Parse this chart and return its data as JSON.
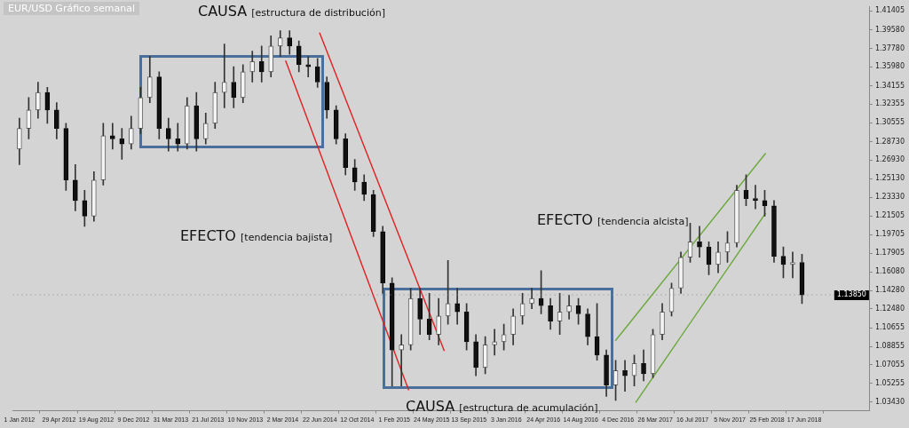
{
  "chart_data": {
    "type": "candlestick",
    "title": "EUR/USD Gráfico semanal",
    "annotations": [
      "CAUSA [estructura de distribución]",
      "EFECTO [tendencia bajista]",
      "CAUSA [estructura de acumulación]",
      "EFECTO [tendencia alcista]"
    ],
    "x": [
      "2012-01-01",
      "2012-01-29",
      "2012-02-26",
      "2012-03-25",
      "2012-04-22",
      "2012-05-20",
      "2012-06-17",
      "2012-07-15",
      "2012-08-12",
      "2012-09-09",
      "2012-10-07",
      "2012-11-04",
      "2012-12-02",
      "2012-12-30",
      "2013-01-27",
      "2013-02-24",
      "2013-03-24",
      "2013-04-21",
      "2013-05-19",
      "2013-06-16",
      "2013-07-14",
      "2013-08-11",
      "2013-09-08",
      "2013-10-06",
      "2013-11-03",
      "2013-12-01",
      "2013-12-29",
      "2014-01-26",
      "2014-02-23",
      "2014-03-23",
      "2014-04-20",
      "2014-05-18",
      "2014-06-15",
      "2014-07-13",
      "2014-08-10",
      "2014-09-07",
      "2014-10-05",
      "2014-11-02",
      "2014-11-30",
      "2014-12-28",
      "2015-01-25",
      "2015-02-22",
      "2015-03-22",
      "2015-04-19",
      "2015-05-17",
      "2015-06-14",
      "2015-07-12",
      "2015-08-09",
      "2015-09-06",
      "2015-10-04",
      "2015-11-01",
      "2015-11-29",
      "2015-12-27",
      "2016-01-24",
      "2016-02-21",
      "2016-03-20",
      "2016-04-17",
      "2016-05-15",
      "2016-06-12",
      "2016-07-10",
      "2016-08-07",
      "2016-09-04",
      "2016-10-02",
      "2016-10-30",
      "2016-11-27",
      "2016-12-25",
      "2017-01-22",
      "2017-02-19",
      "2017-03-19",
      "2017-04-16",
      "2017-05-14",
      "2017-06-11",
      "2017-07-09",
      "2017-08-06",
      "2017-09-03",
      "2017-10-01",
      "2017-10-29",
      "2017-11-26",
      "2017-12-24",
      "2018-01-21",
      "2018-02-18",
      "2018-03-18",
      "2018-04-15",
      "2018-05-13",
      "2018-06-10"
    ],
    "ohlc": [
      [
        1.28,
        1.31,
        1.265,
        1.3
      ],
      [
        1.3,
        1.33,
        1.29,
        1.318
      ],
      [
        1.318,
        1.345,
        1.31,
        1.335
      ],
      [
        1.335,
        1.34,
        1.305,
        1.318
      ],
      [
        1.318,
        1.325,
        1.29,
        1.3
      ],
      [
        1.3,
        1.305,
        1.24,
        1.25
      ],
      [
        1.25,
        1.265,
        1.22,
        1.23
      ],
      [
        1.23,
        1.24,
        1.205,
        1.215
      ],
      [
        1.215,
        1.258,
        1.21,
        1.25
      ],
      [
        1.25,
        1.305,
        1.245,
        1.293
      ],
      [
        1.293,
        1.305,
        1.28,
        1.29
      ],
      [
        1.29,
        1.3,
        1.27,
        1.285
      ],
      [
        1.285,
        1.312,
        1.28,
        1.3
      ],
      [
        1.3,
        1.34,
        1.295,
        1.33
      ],
      [
        1.33,
        1.37,
        1.325,
        1.35
      ],
      [
        1.35,
        1.355,
        1.29,
        1.3
      ],
      [
        1.3,
        1.31,
        1.278,
        1.29
      ],
      [
        1.29,
        1.305,
        1.278,
        1.285
      ],
      [
        1.285,
        1.33,
        1.28,
        1.322
      ],
      [
        1.322,
        1.335,
        1.278,
        1.29
      ],
      [
        1.29,
        1.315,
        1.285,
        1.305
      ],
      [
        1.305,
        1.345,
        1.3,
        1.335
      ],
      [
        1.335,
        1.382,
        1.32,
        1.345
      ],
      [
        1.345,
        1.36,
        1.32,
        1.33
      ],
      [
        1.33,
        1.362,
        1.325,
        1.355
      ],
      [
        1.355,
        1.375,
        1.345,
        1.365
      ],
      [
        1.365,
        1.38,
        1.345,
        1.355
      ],
      [
        1.355,
        1.39,
        1.35,
        1.38
      ],
      [
        1.38,
        1.395,
        1.37,
        1.388
      ],
      [
        1.388,
        1.395,
        1.372,
        1.38
      ],
      [
        1.38,
        1.385,
        1.355,
        1.362
      ],
      [
        1.362,
        1.37,
        1.35,
        1.36
      ],
      [
        1.36,
        1.368,
        1.34,
        1.345
      ],
      [
        1.345,
        1.35,
        1.31,
        1.318
      ],
      [
        1.318,
        1.322,
        1.285,
        1.29
      ],
      [
        1.29,
        1.295,
        1.255,
        1.262
      ],
      [
        1.262,
        1.27,
        1.24,
        1.248
      ],
      [
        1.248,
        1.255,
        1.23,
        1.236
      ],
      [
        1.236,
        1.24,
        1.195,
        1.2
      ],
      [
        1.2,
        1.205,
        1.14,
        1.15
      ],
      [
        1.15,
        1.155,
        1.05,
        1.085
      ],
      [
        1.085,
        1.1,
        1.05,
        1.09
      ],
      [
        1.09,
        1.145,
        1.085,
        1.135
      ],
      [
        1.135,
        1.145,
        1.1,
        1.115
      ],
      [
        1.115,
        1.14,
        1.095,
        1.1
      ],
      [
        1.1,
        1.135,
        1.09,
        1.118
      ],
      [
        1.118,
        1.172,
        1.11,
        1.13
      ],
      [
        1.13,
        1.145,
        1.11,
        1.122
      ],
      [
        1.122,
        1.13,
        1.085,
        1.093
      ],
      [
        1.093,
        1.1,
        1.06,
        1.068
      ],
      [
        1.068,
        1.098,
        1.062,
        1.09
      ],
      [
        1.09,
        1.105,
        1.08,
        1.093
      ],
      [
        1.093,
        1.11,
        1.085,
        1.1
      ],
      [
        1.1,
        1.125,
        1.09,
        1.118
      ],
      [
        1.118,
        1.14,
        1.11,
        1.13
      ],
      [
        1.13,
        1.145,
        1.125,
        1.135
      ],
      [
        1.135,
        1.162,
        1.12,
        1.128
      ],
      [
        1.128,
        1.135,
        1.105,
        1.113
      ],
      [
        1.113,
        1.14,
        1.1,
        1.122
      ],
      [
        1.122,
        1.138,
        1.115,
        1.128
      ],
      [
        1.128,
        1.135,
        1.11,
        1.12
      ],
      [
        1.12,
        1.125,
        1.09,
        1.098
      ],
      [
        1.098,
        1.13,
        1.075,
        1.08
      ],
      [
        1.08,
        1.085,
        1.04,
        1.051
      ],
      [
        1.051,
        1.075,
        1.036,
        1.065
      ],
      [
        1.065,
        1.075,
        1.045,
        1.06
      ],
      [
        1.06,
        1.08,
        1.05,
        1.072
      ],
      [
        1.072,
        1.085,
        1.055,
        1.062
      ],
      [
        1.062,
        1.105,
        1.058,
        1.1
      ],
      [
        1.1,
        1.13,
        1.095,
        1.122
      ],
      [
        1.122,
        1.15,
        1.118,
        1.145
      ],
      [
        1.145,
        1.18,
        1.14,
        1.175
      ],
      [
        1.175,
        1.208,
        1.17,
        1.19
      ],
      [
        1.19,
        1.205,
        1.175,
        1.185
      ],
      [
        1.185,
        1.19,
        1.158,
        1.168
      ],
      [
        1.168,
        1.19,
        1.16,
        1.18
      ],
      [
        1.18,
        1.2,
        1.17,
        1.189
      ],
      [
        1.189,
        1.245,
        1.185,
        1.24
      ],
      [
        1.24,
        1.255,
        1.225,
        1.232
      ],
      [
        1.232,
        1.245,
        1.222,
        1.23
      ],
      [
        1.23,
        1.24,
        1.215,
        1.225
      ],
      [
        1.225,
        1.23,
        1.17,
        1.176
      ],
      [
        1.176,
        1.185,
        1.155,
        1.168
      ],
      [
        1.168,
        1.18,
        1.155,
        1.17
      ],
      [
        1.17,
        1.178,
        1.13,
        1.1385
      ]
    ],
    "series": [
      {
        "type": "line",
        "color": "#e02020",
        "x": [
          "2014-03-11",
          "2015-03-16"
        ],
        "values": [
          1.366,
          1.046
        ]
      },
      {
        "type": "line",
        "color": "#e02020",
        "x": [
          "2014-06-21",
          "2015-07-01"
        ],
        "values": [
          1.393,
          1.084
        ]
      },
      {
        "type": "line",
        "color": "#6aa83a",
        "x": [
          "2016-11-26",
          "2018-02-21"
        ],
        "values": [
          1.094,
          1.276
        ]
      },
      {
        "type": "line",
        "color": "#6aa83a",
        "x": [
          "2017-01-26",
          "2018-02-21"
        ],
        "values": [
          1.034,
          1.218
        ]
      }
    ],
    "ref_lines": [
      {
        "axis": "y",
        "value": 1.1385,
        "label": "1.13850"
      }
    ],
    "xlim": [
      "2011-12-11",
      "2018-12-31"
    ],
    "xticks": [
      {
        "value": "2012-01-01",
        "label": "1 Jan 2012"
      },
      {
        "value": "2012-04-29",
        "label": "29 Apr 2012"
      },
      {
        "value": "2012-08-19",
        "label": "19 Aug 2012"
      },
      {
        "value": "2012-12-09",
        "label": "9 Dec 2012"
      },
      {
        "value": "2013-03-31",
        "label": "31 Mar 2013"
      },
      {
        "value": "2013-07-21",
        "label": "21 Jul 2013"
      },
      {
        "value": "2013-11-10",
        "label": "10 Nov 2013"
      },
      {
        "value": "2014-03-02",
        "label": "2 Mar 2014"
      },
      {
        "value": "2014-06-22",
        "label": "22 Jun 2014"
      },
      {
        "value": "2014-10-12",
        "label": "12 Oct 2014"
      },
      {
        "value": "2015-02-01",
        "label": "1 Feb 2015"
      },
      {
        "value": "2015-05-24",
        "label": "24 May 2015"
      },
      {
        "value": "2015-09-13",
        "label": "13 Sep 2015"
      },
      {
        "value": "2016-01-03",
        "label": "3 Jan 2016"
      },
      {
        "value": "2016-04-24",
        "label": "24 Apr 2016"
      },
      {
        "value": "2016-08-14",
        "label": "14 Aug 2016"
      },
      {
        "value": "2016-12-04",
        "label": "4 Dec 2016"
      },
      {
        "value": "2017-03-26",
        "label": "26 Mar 2017"
      },
      {
        "value": "2017-07-16",
        "label": "16 Jul 2017"
      },
      {
        "value": "2017-11-05",
        "label": "5 Nov 2017"
      },
      {
        "value": "2018-02-25",
        "label": "25 Feb 2018"
      },
      {
        "value": "2018-06-17",
        "label": "17 Jun 2018"
      }
    ],
    "ylim": [
      1.026,
      1.418
    ],
    "yticks": [
      1.41405,
      {
        "value": 1.3958,
        "label": "1.39580"
      },
      {
        "value": 1.3778,
        "label": "1.37780"
      },
      {
        "value": 1.3598,
        "label": "1.35980"
      },
      1.34155,
      1.32355,
      1.30555,
      {
        "value": 1.2873,
        "label": "1.28730"
      },
      {
        "value": 1.2693,
        "label": "1.26930"
      },
      {
        "value": 1.2513,
        "label": "1.25130"
      },
      {
        "value": 1.2333,
        "label": "1.23330"
      },
      1.21505,
      1.19705,
      1.17905,
      {
        "value": 1.1608,
        "label": "1.16080"
      },
      {
        "value": 1.1428,
        "label": "1.14280"
      },
      {
        "value": 1.1248,
        "label": "1.12480"
      },
      1.10655,
      1.08855,
      1.07055,
      1.05255,
      {
        "value": 1.0343,
        "label": "1.03430"
      }
    ],
    "grid": false,
    "legend": false
  }
}
